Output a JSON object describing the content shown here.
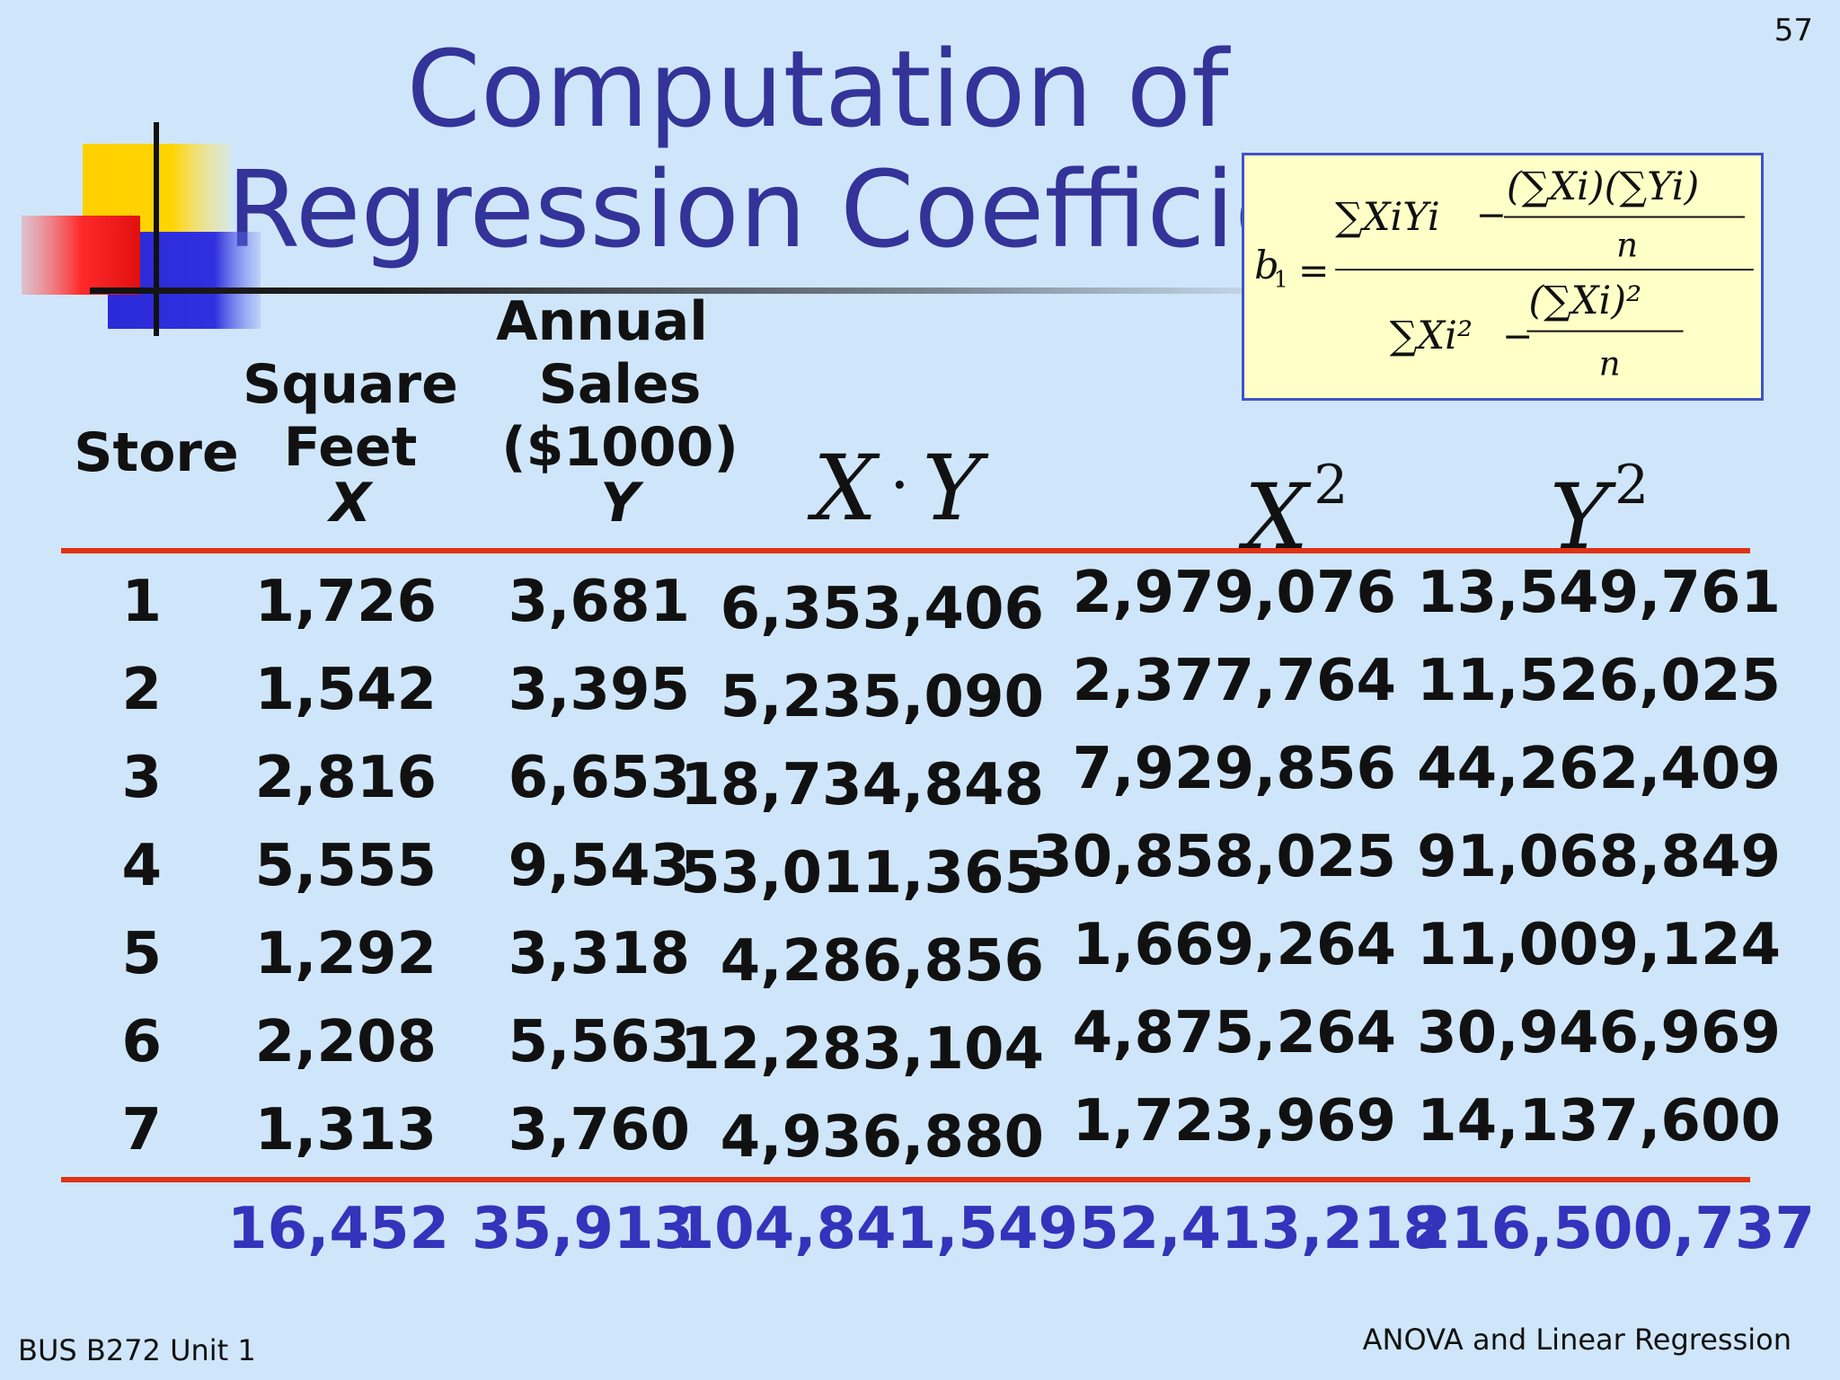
{
  "slide": {
    "page_number": "57",
    "title": "Computation of Regression Coefficient",
    "footer_left": "BUS B272 Unit 1",
    "footer_right": "ANOVA and Linear Regression"
  },
  "formula": {
    "lhs": "b",
    "lhs_sub": "1",
    "numerator_term": "∑XiYi",
    "numerator_correction_num": "(∑Xi)(∑Yi)",
    "numerator_correction_den": "n",
    "denominator_term": "∑Xi²",
    "denominator_correction_num": "(∑Xi)²",
    "denominator_correction_den": "n"
  },
  "table": {
    "headers": {
      "store": "Store",
      "square_feet_line1": "Square",
      "square_feet_line2": "Feet",
      "square_feet_var": "X",
      "sales_line1": "Annual",
      "sales_line2": "Sales",
      "sales_line3": "($1000)",
      "sales_var": "Y",
      "xy_left": "X",
      "xy_dot": "·",
      "xy_right": "Y",
      "x2_base": "X",
      "x2_exp": "2",
      "y2_base": "Y",
      "y2_exp": "2"
    },
    "rows": [
      {
        "store": "1",
        "x": "1,726",
        "y": "3,681",
        "xy": "6,353,406",
        "x2": "2,979,076",
        "y2": "13,549,761"
      },
      {
        "store": "2",
        "x": "1,542",
        "y": "3,395",
        "xy": "5,235,090",
        "x2": "2,377,764",
        "y2": "11,526,025"
      },
      {
        "store": "3",
        "x": "2,816",
        "y": "6,653",
        "xy": "18,734,848",
        "x2": "7,929,856",
        "y2": "44,262,409"
      },
      {
        "store": "4",
        "x": "5,555",
        "y": "9,543",
        "xy": "53,011,365",
        "x2": "30,858,025",
        "y2": "91,068,849"
      },
      {
        "store": "5",
        "x": "1,292",
        "y": "3,318",
        "xy": "4,286,856",
        "x2": "1,669,264",
        "y2": "11,009,124"
      },
      {
        "store": "6",
        "x": "2,208",
        "y": "5,563",
        "xy": "12,283,104",
        "x2": "4,875,264",
        "y2": "30,946,969"
      },
      {
        "store": "7",
        "x": "1,313",
        "y": "3,760",
        "xy": "4,936,880",
        "x2": "1,723,969",
        "y2": "14,137,600"
      }
    ],
    "totals": {
      "x": "16,452",
      "y": "35,913",
      "xy": "104,841,549",
      "x2": "52,413,218",
      "y2": "216,500,737"
    }
  },
  "colors": {
    "background": "#cfe6fa",
    "title": "#333399",
    "totals": "#3333bb",
    "rule": "#e03214",
    "formula_bg": "#ffffc8",
    "formula_border": "#4052c8"
  }
}
